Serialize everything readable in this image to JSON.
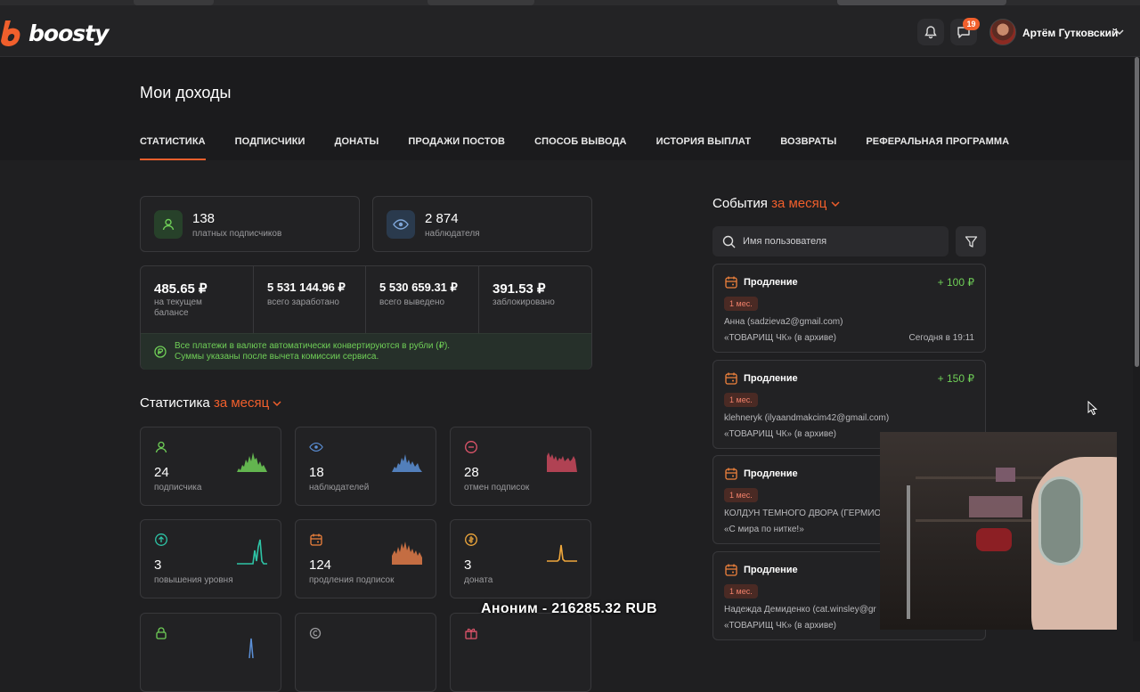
{
  "brand": {
    "name": "boosty",
    "accent": "#f15f2c"
  },
  "header": {
    "notifications_badge": "19",
    "user_name": "Артём Гутковский"
  },
  "page": {
    "title": "Мои доходы"
  },
  "tabs": [
    "СТАТИСТИКА",
    "ПОДПИСЧИКИ",
    "ДОНАТЫ",
    "ПРОДАЖИ ПОСТОВ",
    "СПОСОБ ВЫВОДА",
    "ИСТОРИЯ ВЫПЛАТ",
    "ВОЗВРАТЫ",
    "РЕФЕРАЛЬНАЯ ПРОГРАММА"
  ],
  "kpis": [
    {
      "value": "138",
      "label": "платных подписчиков",
      "icon": "user-icon"
    },
    {
      "value": "2 874",
      "label": "наблюдателя",
      "icon": "eye-icon"
    }
  ],
  "balance": [
    {
      "value": "485.65 ₽",
      "label": "на текущем балансе"
    },
    {
      "value": "5 531 144.96 ₽",
      "label": "всего заработано"
    },
    {
      "value": "5 530 659.31 ₽",
      "label": "всего выведено"
    },
    {
      "value": "391.53 ₽",
      "label": "заблокировано"
    }
  ],
  "notice": {
    "line1": "Все платежи в валюте автоматически конвертируются в рубли (₽).",
    "line2": "Суммы указаны после вычета комиссии сервиса."
  },
  "stats_section": {
    "title": "Статистика",
    "period": "за месяц"
  },
  "stats": [
    {
      "value": "24",
      "label": "подписчика",
      "icon": "user-icon",
      "color": "#6fcf57"
    },
    {
      "value": "18",
      "label": "наблюдателей",
      "icon": "eye-icon",
      "color": "#5b8fd6"
    },
    {
      "value": "28",
      "label": "отмен подписок",
      "icon": "minus-circle-icon",
      "color": "#e0556b"
    },
    {
      "value": "3",
      "label": "повышения уровня",
      "icon": "arrow-up-circle-icon",
      "color": "#2ec4a6"
    },
    {
      "value": "124",
      "label": "продления подписок",
      "icon": "calendar-icon",
      "color": "#f0823c"
    },
    {
      "value": "3",
      "label": "доната",
      "icon": "coin-icon",
      "color": "#f0a83c"
    }
  ],
  "events_section": {
    "title": "События",
    "period": "за месяц",
    "search_placeholder": "Имя пользователя"
  },
  "events": [
    {
      "type": "Продление",
      "amount": "+ 100 ₽",
      "period": "1 мес.",
      "user": "Анна (sadzieva2@gmail.com)",
      "tier": "«ТОВАРИЩ ЧК» (в архиве)",
      "time": "Сегодня в 19:11"
    },
    {
      "type": "Продление",
      "amount": "+ 150 ₽",
      "period": "1 мес.",
      "user": "klehneryk (ilyaandmakcim42@gmail.com)",
      "tier": "«ТОВАРИЩ ЧК» (в архиве)",
      "time": ""
    },
    {
      "type": "Продление",
      "amount": "",
      "period": "1 мес.",
      "user": "КОЛДУН ТЕМНОГО ДВОРА (ГЕРМИО",
      "tier": "«С мира по нитке!»",
      "time": ""
    },
    {
      "type": "Продление",
      "amount": "",
      "period": "1 мес.",
      "user": "Надежда Демиденко (cat.winsley@gr",
      "tier": "«ТОВАРИЩ ЧК» (в архиве)",
      "time": ""
    }
  ],
  "overlay": {
    "donation_text": "Аноним - 216285.32 RUB"
  }
}
